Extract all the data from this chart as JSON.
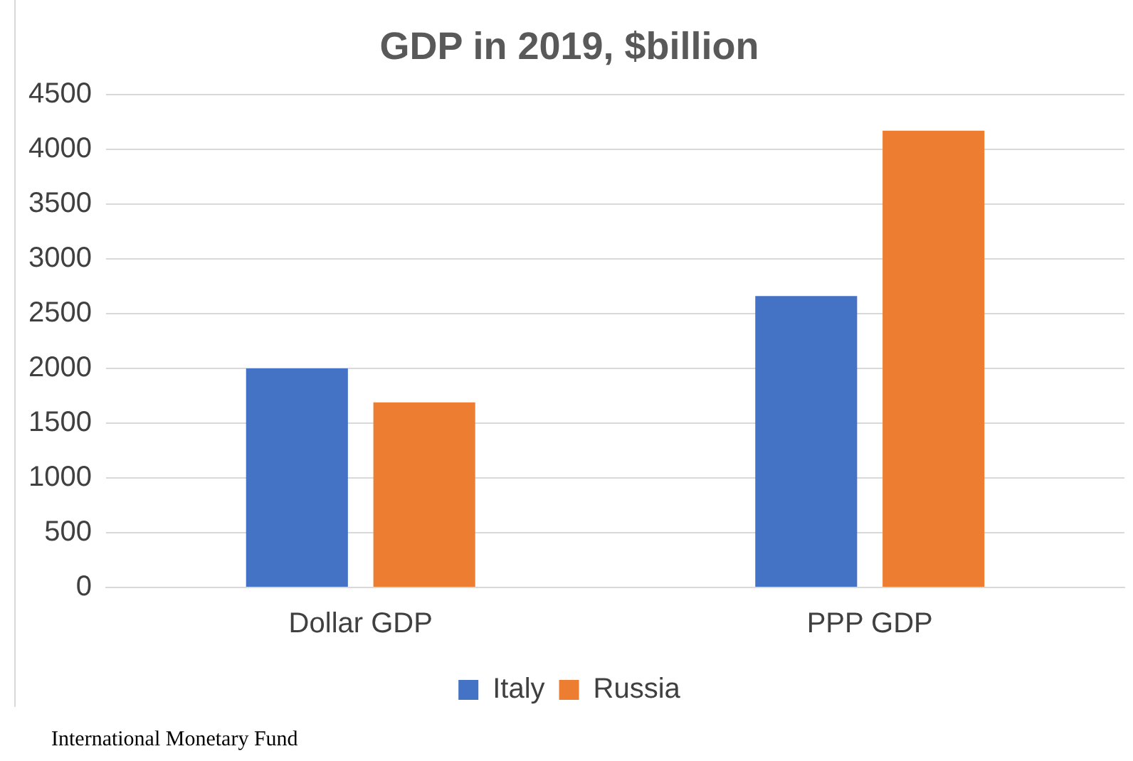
{
  "chart_data": {
    "type": "bar",
    "title": "GDP in 2019, $billion",
    "categories": [
      "Dollar GDP",
      "PPP GDP"
    ],
    "series": [
      {
        "name": "Italy",
        "color": "#4472c4",
        "values": [
          2000,
          2660
        ]
      },
      {
        "name": "Russia",
        "color": "#ed7d31",
        "values": [
          1690,
          4170
        ]
      }
    ],
    "ylim": [
      0,
      4500
    ],
    "yticks": [
      0,
      500,
      1000,
      1500,
      2000,
      2500,
      3000,
      3500,
      4000,
      4500
    ],
    "grid": "y",
    "legend": "bottom",
    "annotations": [
      "International Monetary Fund"
    ]
  }
}
